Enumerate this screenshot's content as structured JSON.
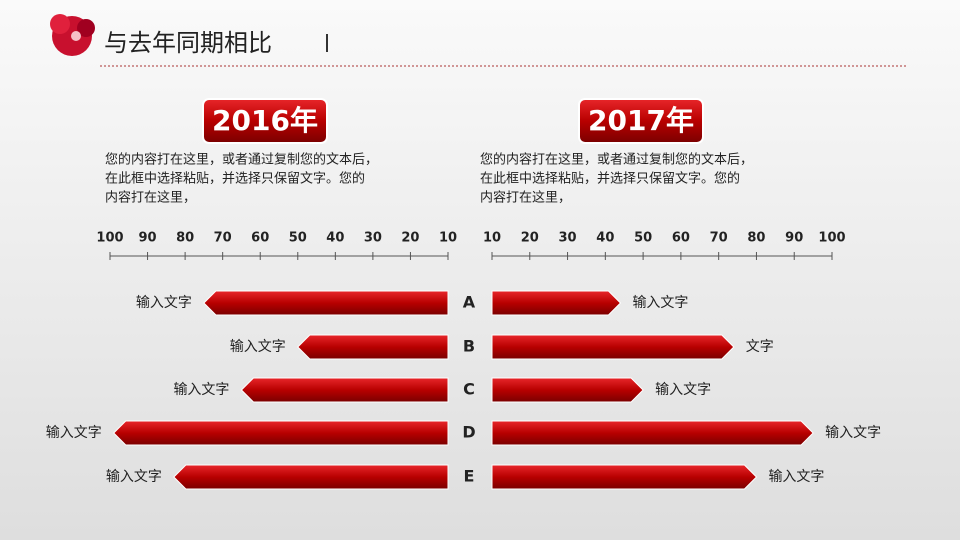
{
  "title": "与去年同期相比",
  "chart_data": [
    {
      "type": "bar",
      "orientation": "horizontal",
      "title": "2016年",
      "description": [
        "您的内容打在这里，或者通过复制您的文本后，",
        "在此框中选择粘贴，并选择只保留文字。您的",
        "内容打在这里，"
      ],
      "categories": [
        "A",
        "B",
        "C",
        "D",
        "E"
      ],
      "values": [
        75,
        50,
        65,
        99,
        83
      ],
      "annotations": [
        "输入文字",
        "输入文字",
        "输入文字",
        "输入文字",
        "输入文字"
      ],
      "color": "#c00000",
      "xlim": [
        100,
        10
      ],
      "xticks": [
        100,
        90,
        80,
        70,
        60,
        50,
        40,
        30,
        20,
        10
      ]
    },
    {
      "type": "bar",
      "orientation": "horizontal",
      "title": "2017年",
      "description": [
        "您的内容打在这里，或者通过复制您的文本后，",
        "在此框中选择粘贴，并选择只保留文字。您的",
        "内容打在这里，"
      ],
      "values": [
        44,
        74,
        50,
        95,
        80
      ],
      "annotations": [
        "输入文字",
        "文字",
        "输入文字",
        "输入文字",
        "输入文字"
      ],
      "color": "#c00000",
      "xlim": [
        10,
        100
      ],
      "xticks": [
        10,
        20,
        30,
        40,
        50,
        60,
        70,
        80,
        90,
        100
      ]
    }
  ]
}
